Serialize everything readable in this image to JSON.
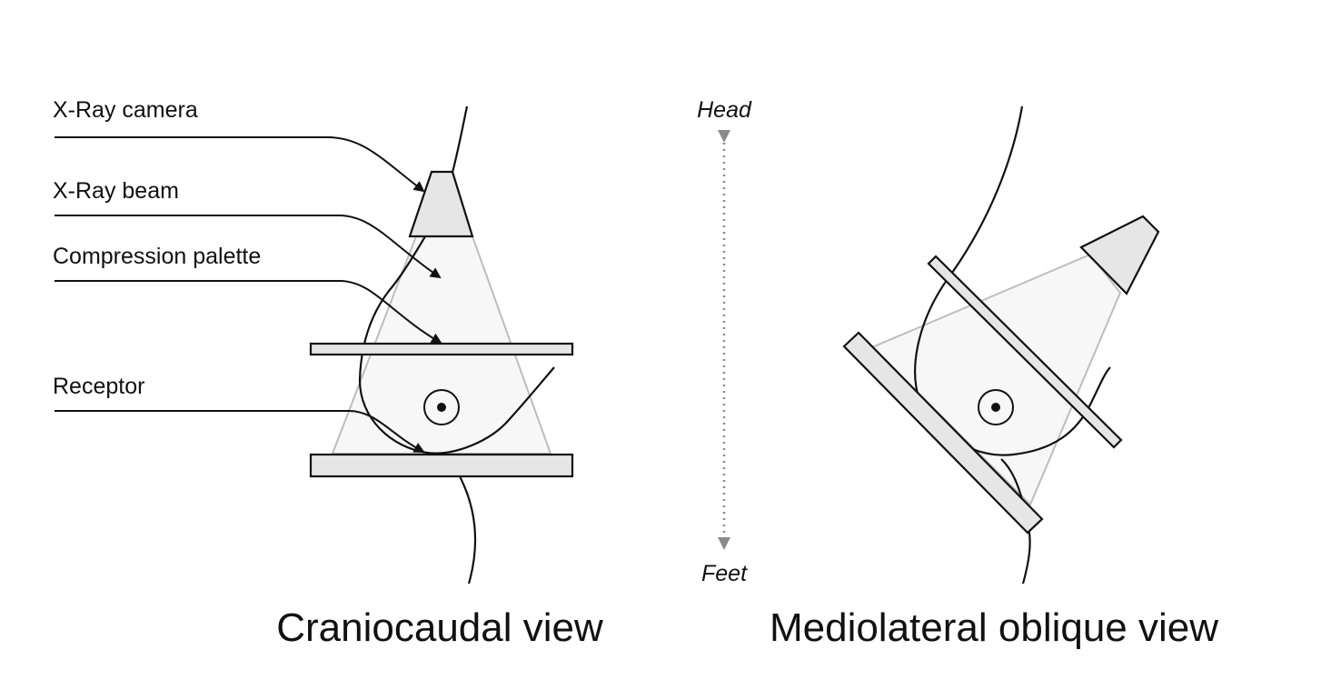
{
  "labels": {
    "camera": "X-Ray camera",
    "beam": "X-Ray beam",
    "palette": "Compression palette",
    "receptor": "Receptor"
  },
  "orientation": {
    "top": "Head",
    "bottom": "Feet"
  },
  "views": {
    "left": "Craniocaudal view",
    "right": "Mediolateral oblique view"
  },
  "colors": {
    "stroke": "#111111",
    "plate_fill": "#e6e6e6",
    "beam_fill": "#f7f7f7",
    "beam_edge": "#bdbdbd",
    "axis_arrow": "#8a8a8a"
  }
}
